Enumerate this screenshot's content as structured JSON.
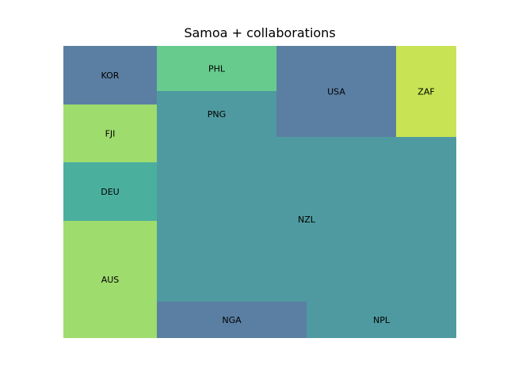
{
  "chart_data": {
    "type": "treemap",
    "title": "Samoa + collaborations",
    "tiles": [
      {
        "label": "KOR",
        "value": 8,
        "color": "#5b7fa3"
      },
      {
        "label": "FJI",
        "value": 8,
        "color": "#9edc6e"
      },
      {
        "label": "DEU",
        "value": 8,
        "color": "#4baf9e"
      },
      {
        "label": "AUS",
        "value": 16,
        "color": "#9edc6e"
      },
      {
        "label": "PHL",
        "value": 8,
        "color": "#66cb8d"
      },
      {
        "label": "PNG",
        "value": 8,
        "color": "#4f9aa0"
      },
      {
        "label": "USA",
        "value": 16,
        "color": "#5b7fa3"
      },
      {
        "label": "ZAF",
        "value": 8,
        "color": "#c8e354"
      },
      {
        "label": "NZL",
        "value": 72,
        "color": "#4f9aa0"
      },
      {
        "label": "NGA",
        "value": 8,
        "color": "#5b7fa3"
      },
      {
        "label": "NPL",
        "value": 8,
        "color": "#4f9aa0"
      }
    ]
  }
}
